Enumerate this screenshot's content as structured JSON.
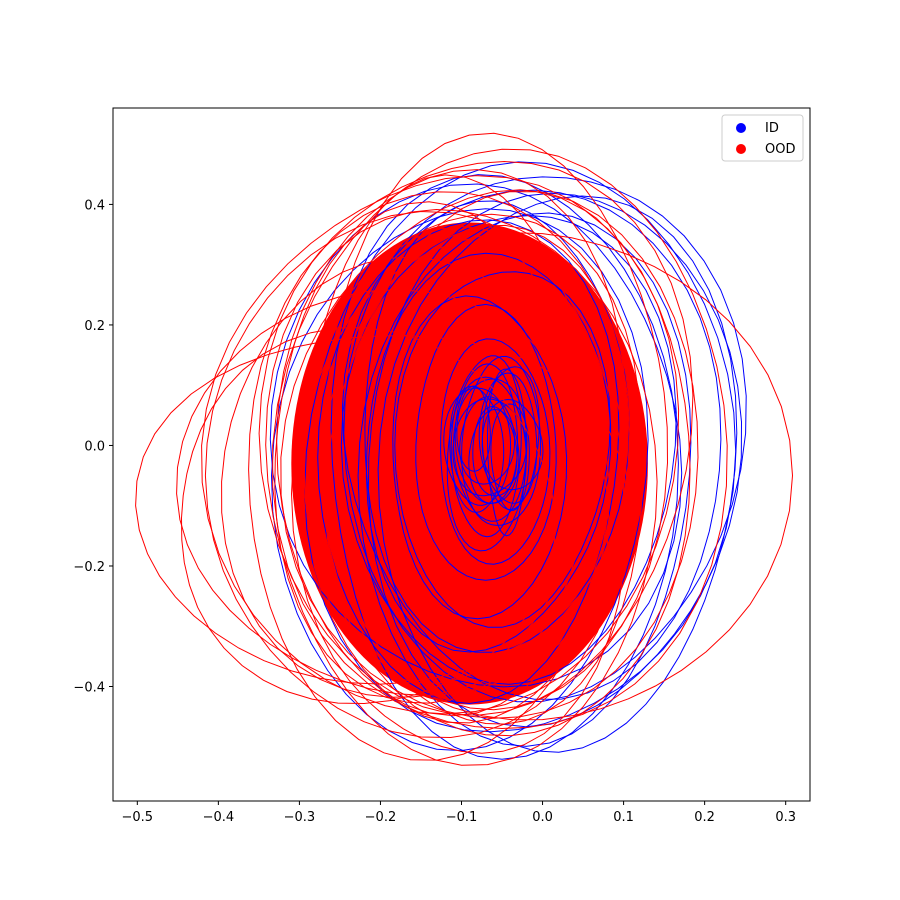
{
  "chart_data": {
    "type": "scatter",
    "title": "",
    "xlabel": "",
    "ylabel": "",
    "xlim": [
      -0.53,
      0.33
    ],
    "ylim": [
      -0.59,
      0.56
    ],
    "xticks": [
      {
        "value": -0.5,
        "label": "−0.5"
      },
      {
        "value": -0.4,
        "label": "−0.4"
      },
      {
        "value": -0.3,
        "label": "−0.3"
      },
      {
        "value": -0.2,
        "label": "−0.2"
      },
      {
        "value": -0.1,
        "label": "−0.1"
      },
      {
        "value": 0.0,
        "label": "0.0"
      },
      {
        "value": 0.1,
        "label": "0.1"
      },
      {
        "value": 0.2,
        "label": "0.2"
      },
      {
        "value": 0.3,
        "label": "0.3"
      }
    ],
    "yticks": [
      {
        "value": -0.4,
        "label": "−0.4"
      },
      {
        "value": -0.2,
        "label": "−0.2"
      },
      {
        "value": 0.0,
        "label": "0.0"
      },
      {
        "value": 0.2,
        "label": "0.2"
      },
      {
        "value": 0.4,
        "label": "0.4"
      }
    ],
    "grid": false,
    "legend_position": "top-right",
    "series": [
      {
        "name": "ID",
        "color": "#0000ff",
        "center": [
          -0.07,
          0.0
        ],
        "curves": [
          {
            "cx": -0.03,
            "cy": -0.01,
            "rx": 0.26,
            "ry": 0.48
          },
          {
            "cx": 0.0,
            "cy": 0.02,
            "rx": 0.24,
            "ry": 0.45
          },
          {
            "cx": 0.01,
            "cy": -0.02,
            "rx": 0.23,
            "ry": 0.44
          },
          {
            "cx": -0.05,
            "cy": -0.03,
            "rx": 0.22,
            "ry": 0.47
          },
          {
            "cx": -0.08,
            "cy": 0.01,
            "rx": 0.25,
            "ry": 0.42
          },
          {
            "cx": -0.04,
            "cy": 0.0,
            "rx": 0.2,
            "ry": 0.4
          },
          {
            "cx": -0.02,
            "cy": -0.05,
            "rx": 0.21,
            "ry": 0.43
          },
          {
            "cx": -0.09,
            "cy": -0.02,
            "rx": 0.19,
            "ry": 0.39
          },
          {
            "cx": -0.06,
            "cy": 0.03,
            "rx": 0.17,
            "ry": 0.36
          },
          {
            "cx": -0.07,
            "cy": -0.01,
            "rx": 0.15,
            "ry": 0.33
          },
          {
            "cx": -0.05,
            "cy": 0.0,
            "rx": 0.13,
            "ry": 0.3
          },
          {
            "cx": -0.08,
            "cy": -0.02,
            "rx": 0.11,
            "ry": 0.26
          },
          {
            "cx": -0.07,
            "cy": 0.0,
            "rx": 0.09,
            "ry": 0.22
          },
          {
            "cx": -0.06,
            "cy": -0.01,
            "rx": 0.07,
            "ry": 0.18
          },
          {
            "cx": -0.07,
            "cy": -0.03,
            "rx": 0.05,
            "ry": 0.14
          },
          {
            "cx": -0.08,
            "cy": 0.0,
            "rx": 0.04,
            "ry": 0.1
          },
          {
            "cx": -0.06,
            "cy": -0.02,
            "rx": 0.03,
            "ry": 0.08
          },
          {
            "cx": 0.02,
            "cy": -0.04,
            "rx": 0.22,
            "ry": 0.46
          },
          {
            "cx": -0.01,
            "cy": 0.01,
            "rx": 0.24,
            "ry": 0.41
          },
          {
            "cx": -0.1,
            "cy": -0.05,
            "rx": 0.23,
            "ry": 0.45
          }
        ]
      },
      {
        "name": "OOD",
        "color": "#ff0000",
        "center": [
          -0.09,
          -0.03
        ],
        "curves": [
          {
            "cx": -0.2,
            "cy": -0.1,
            "rx": 0.29,
            "ry": 0.3
          },
          {
            "cx": -0.18,
            "cy": -0.08,
            "rx": 0.27,
            "ry": 0.33
          },
          {
            "cx": 0.0,
            "cy": -0.05,
            "rx": 0.29,
            "ry": 0.42
          },
          {
            "cx": -0.05,
            "cy": 0.0,
            "rx": 0.27,
            "ry": 0.5
          },
          {
            "cx": -0.12,
            "cy": 0.0,
            "rx": 0.29,
            "ry": 0.45
          },
          {
            "cx": -0.15,
            "cy": -0.05,
            "rx": 0.27,
            "ry": 0.42
          },
          {
            "cx": -0.1,
            "cy": -0.06,
            "rx": 0.24,
            "ry": 0.46
          },
          {
            "cx": -0.08,
            "cy": 0.02,
            "rx": 0.26,
            "ry": 0.47
          },
          {
            "cx": -0.06,
            "cy": -0.02,
            "rx": 0.25,
            "ry": 0.45
          },
          {
            "cx": -0.13,
            "cy": -0.04,
            "rx": 0.24,
            "ry": 0.46
          },
          {
            "cx": -0.11,
            "cy": 0.01,
            "rx": 0.22,
            "ry": 0.44
          },
          {
            "cx": -0.09,
            "cy": -0.03,
            "rx": 0.21,
            "ry": 0.42
          },
          {
            "cx": -0.14,
            "cy": -0.02,
            "rx": 0.2,
            "ry": 0.4
          },
          {
            "cx": -0.07,
            "cy": -0.05,
            "rx": 0.19,
            "ry": 0.43
          },
          {
            "cx": -0.12,
            "cy": 0.02,
            "rx": 0.18,
            "ry": 0.41
          },
          {
            "cx": -0.16,
            "cy": -0.06,
            "rx": 0.23,
            "ry": 0.38
          },
          {
            "cx": -0.04,
            "cy": -0.04,
            "rx": 0.23,
            "ry": 0.44
          },
          {
            "cx": -0.1,
            "cy": -0.08,
            "rx": 0.2,
            "ry": 0.45
          },
          {
            "cx": -0.22,
            "cy": -0.12,
            "rx": 0.24,
            "ry": 0.3
          },
          {
            "cx": -0.06,
            "cy": 0.03,
            "rx": 0.22,
            "ry": 0.46
          }
        ]
      }
    ]
  }
}
